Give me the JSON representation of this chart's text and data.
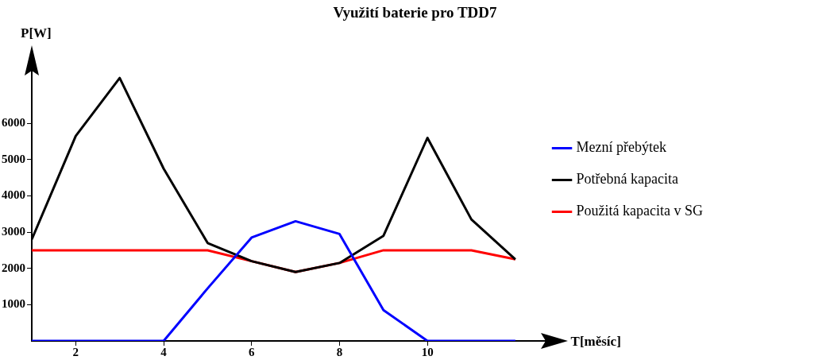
{
  "chart_data": {
    "type": "line",
    "title": "Využití baterie pro TDD7",
    "xlabel": "T[měsíc]",
    "ylabel": "P[W]",
    "x": [
      1,
      2,
      3,
      4,
      5,
      6,
      7,
      8,
      9,
      10,
      11,
      12
    ],
    "series": [
      {
        "name": "Mezní přebýtek",
        "color": "#0000ff",
        "values": [
          0,
          0,
          0,
          0,
          1450,
          2850,
          3300,
          2950,
          850,
          0,
          0,
          0
        ]
      },
      {
        "name": "Potřebná kapacita",
        "color": "#000000",
        "values": [
          2800,
          5650,
          7250,
          4750,
          2700,
          2200,
          1900,
          2150,
          2900,
          5600,
          3350,
          2250
        ]
      },
      {
        "name": "Použitá kapacita v SG",
        "color": "#ff0000",
        "values": [
          2500,
          2500,
          2500,
          2500,
          2500,
          2200,
          1900,
          2150,
          2500,
          2500,
          2500,
          2250
        ]
      }
    ],
    "xlim": [
      1,
      12.5
    ],
    "ylim": [
      0,
      7500
    ],
    "xticks": [
      2,
      4,
      6,
      8,
      10
    ],
    "yticks": [
      1000,
      2000,
      3000,
      4000,
      5000,
      6000
    ],
    "legend": "right",
    "grid": false,
    "marker": "none",
    "line_style": "solid"
  }
}
